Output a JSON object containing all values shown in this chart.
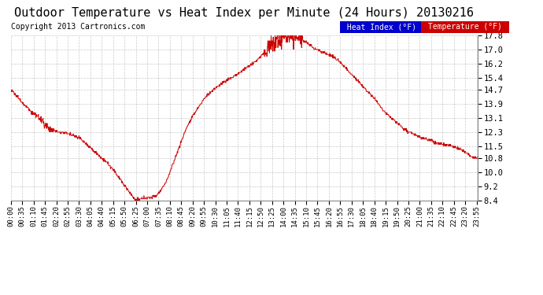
{
  "title": "Outdoor Temperature vs Heat Index per Minute (24 Hours) 20130216",
  "copyright_text": "Copyright 2013 Cartronics.com",
  "background_color": "#ffffff",
  "plot_background": "#ffffff",
  "grid_color": "#bbbbbb",
  "line_color": "#cc0000",
  "ylim": [
    8.4,
    17.8
  ],
  "yticks": [
    8.4,
    9.2,
    10.0,
    10.8,
    11.5,
    12.3,
    13.1,
    13.9,
    14.7,
    15.4,
    16.2,
    17.0,
    17.8
  ],
  "legend_heat_index_bg": "#0000cc",
  "legend_temp_bg": "#cc0000",
  "legend_heat_index_label": "Heat Index (°F)",
  "legend_temp_label": "Temperature (°F)",
  "title_fontsize": 11,
  "copyright_fontsize": 7,
  "tick_fontsize": 6.5,
  "ytick_fontsize": 7.5,
  "key_times": [
    0,
    60,
    80,
    100,
    110,
    130,
    150,
    180,
    210,
    240,
    270,
    300,
    330,
    360,
    385,
    400,
    420,
    450,
    480,
    510,
    540,
    570,
    600,
    630,
    660,
    700,
    730,
    760,
    790,
    810,
    830,
    850,
    870,
    890,
    910,
    940,
    970,
    1000,
    1030,
    1060,
    1090,
    1120,
    1150,
    1180,
    1210,
    1260,
    1310,
    1360,
    1390,
    1420,
    1439
  ],
  "key_values": [
    14.7,
    13.5,
    13.2,
    12.9,
    12.6,
    12.4,
    12.3,
    12.2,
    12.0,
    11.5,
    11.0,
    10.5,
    9.8,
    9.0,
    8.4,
    8.5,
    8.55,
    8.7,
    9.5,
    11.0,
    12.5,
    13.5,
    14.3,
    14.8,
    15.2,
    15.6,
    16.0,
    16.4,
    17.0,
    17.4,
    17.6,
    17.8,
    17.7,
    17.6,
    17.4,
    17.0,
    16.8,
    16.5,
    16.0,
    15.4,
    14.8,
    14.2,
    13.5,
    13.0,
    12.5,
    12.0,
    11.7,
    11.5,
    11.3,
    10.9,
    10.8
  ],
  "noise_seed": 12345,
  "tick_interval_minutes": 35
}
